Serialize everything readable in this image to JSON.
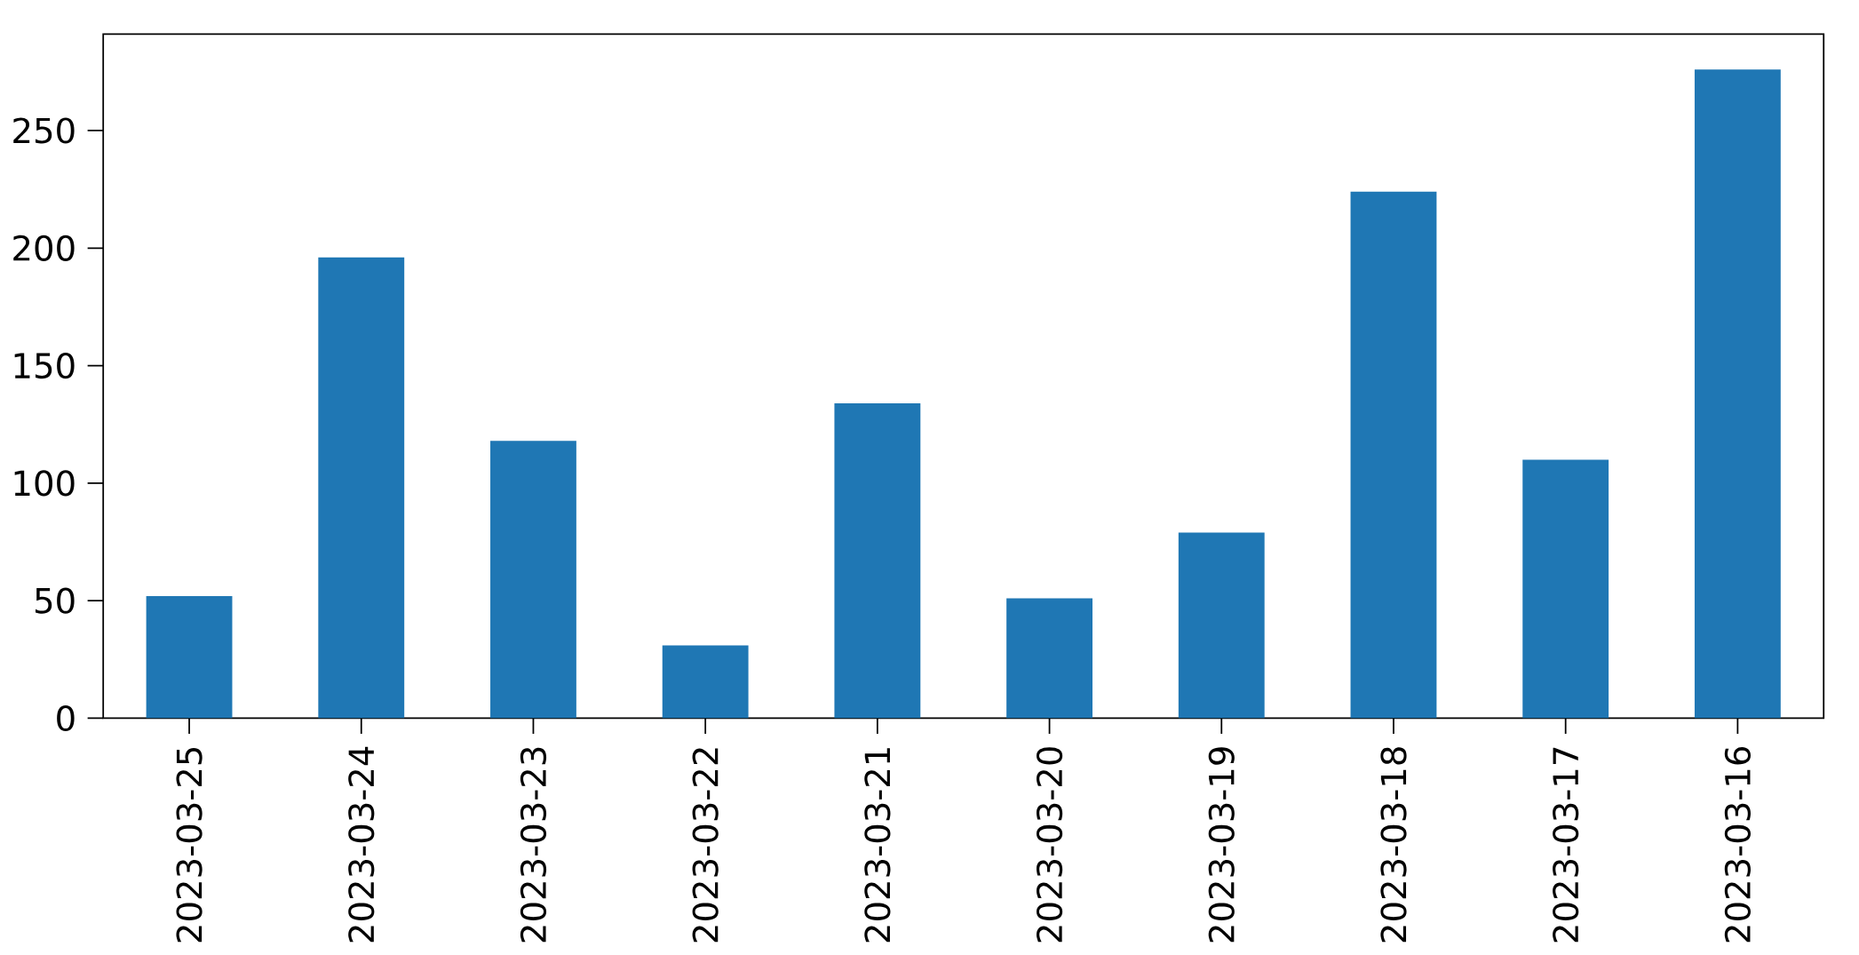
{
  "chart_data": {
    "type": "bar",
    "categories": [
      "2023-03-25",
      "2023-03-24",
      "2023-03-23",
      "2023-03-22",
      "2023-03-21",
      "2023-03-20",
      "2023-03-19",
      "2023-03-18",
      "2023-03-17",
      "2023-03-16"
    ],
    "values": [
      52,
      196,
      118,
      31,
      134,
      51,
      79,
      224,
      110,
      276
    ],
    "color": "#1f77b4",
    "ylim": [
      0,
      291
    ],
    "yticks": [
      0,
      50,
      100,
      150,
      200,
      250
    ]
  }
}
